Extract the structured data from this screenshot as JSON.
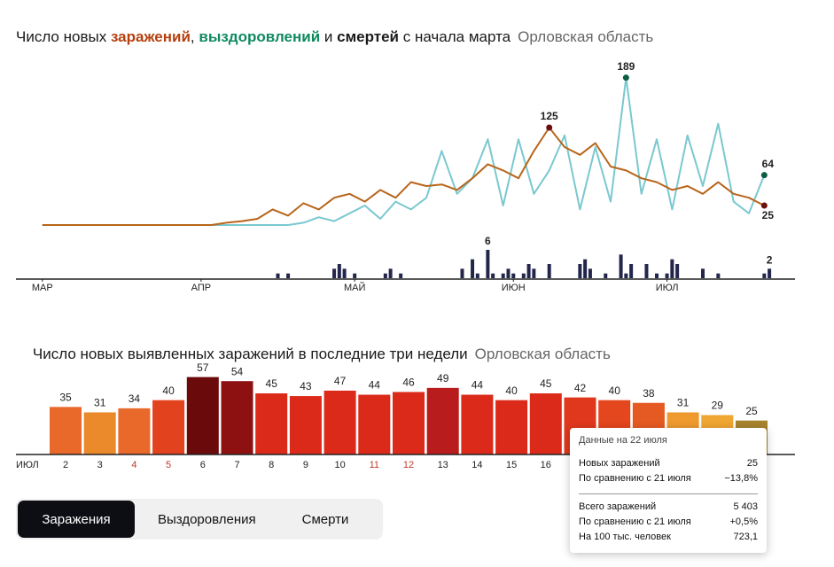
{
  "chart_data": [
    {
      "type": "line",
      "title": [
        {
          "text": "Число новых ",
          "color": "#1a1a1a"
        },
        {
          "text": "заражений",
          "color": "#b5400f"
        },
        {
          "text": ", ",
          "color": "#1a1a1a"
        },
        {
          "text": "выздоровлений",
          "color": "#0f8a5f"
        },
        {
          "text": " и ",
          "color": "#1a1a1a"
        },
        {
          "text": "смертей",
          "color": "#1a1a1a"
        },
        {
          "text": " с начала марта",
          "color": "#1a1a1a"
        }
      ],
      "subtitle": "Орловская область",
      "x": [
        0,
        3,
        6,
        9,
        12,
        15,
        18,
        21,
        24,
        27,
        30,
        33,
        36,
        39,
        42,
        45,
        48,
        51,
        54,
        57,
        60,
        63,
        66,
        69,
        72,
        75,
        78,
        81,
        84,
        87,
        90,
        93,
        96,
        99,
        102,
        105,
        108,
        111,
        114,
        117,
        120,
        123,
        126,
        129,
        132,
        135,
        138,
        141
      ],
      "xlim": [
        -1,
        147
      ],
      "xticks": [
        {
          "value": 0,
          "label": "МАР"
        },
        {
          "value": 31,
          "label": "АПР"
        },
        {
          "value": 61,
          "label": "МАЙ"
        },
        {
          "value": 92,
          "label": "ИЮН"
        },
        {
          "value": 122,
          "label": "ИЮЛ"
        }
      ],
      "ylim": [
        0,
        200
      ],
      "series": [
        {
          "color": "#7ac8d0",
          "marker_color": "#0b5e43",
          "values": [
            0,
            0,
            0,
            0,
            0,
            0,
            0,
            0,
            0,
            0,
            0,
            0,
            0,
            0,
            0,
            0,
            0,
            3,
            10,
            5,
            15,
            25,
            8,
            30,
            20,
            35,
            95,
            40,
            60,
            110,
            25,
            110,
            40,
            70,
            115,
            20,
            100,
            30,
            189,
            40,
            110,
            20,
            115,
            50,
            130,
            30,
            15,
            64
          ]
        },
        {
          "color": "#b8651a",
          "marker_color": "#6b1010",
          "values": [
            0,
            0,
            0,
            0,
            0,
            0,
            0,
            0,
            0,
            0,
            0,
            0,
            3,
            5,
            8,
            20,
            12,
            28,
            20,
            35,
            40,
            30,
            45,
            35,
            55,
            50,
            52,
            45,
            60,
            78,
            70,
            60,
            95,
            125,
            100,
            90,
            105,
            75,
            70,
            60,
            55,
            45,
            50,
            40,
            55,
            40,
            35,
            25
          ]
        }
      ]
    },
    {
      "type": "bar",
      "color": "#23264a",
      "x": [
        46,
        48,
        57,
        58,
        59,
        61,
        67,
        68,
        70,
        82,
        84,
        85,
        87,
        88,
        90,
        91,
        92,
        94,
        95,
        96,
        99,
        105,
        106,
        107,
        110,
        113,
        114,
        115,
        118,
        120,
        122,
        123,
        124,
        129,
        132,
        141,
        142
      ],
      "values": [
        1,
        1,
        2,
        3,
        2,
        1,
        1,
        2,
        1,
        2,
        4,
        1,
        6,
        1,
        1,
        2,
        1,
        1,
        3,
        2,
        3,
        3,
        4,
        2,
        1,
        5,
        1,
        3,
        3,
        1,
        1,
        4,
        3,
        2,
        1,
        1,
        2
      ],
      "xlim": [
        -1,
        147
      ],
      "ylim": [
        0,
        6
      ]
    },
    {
      "type": "bar",
      "title": "Число новых выявленных заражений в последние три недели",
      "subtitle": "Орловская область",
      "month_label": "ИЮЛ",
      "categories": [
        "2",
        "3",
        "4",
        "5",
        "6",
        "7",
        "8",
        "9",
        "10",
        "11",
        "12",
        "13",
        "14",
        "15",
        "16",
        null,
        null,
        null,
        null,
        null,
        null
      ],
      "category_colors": [
        "#222",
        "#222",
        "#c0392b",
        "#c0392b",
        "#222",
        "#222",
        "#222",
        "#222",
        "#222",
        "#c0392b",
        "#c0392b",
        "#222",
        "#222",
        "#222",
        "#222",
        "#222",
        "#222",
        "#222",
        "#222",
        "#222",
        "#222"
      ],
      "values": [
        35,
        31,
        34,
        40,
        57,
        54,
        45,
        43,
        47,
        44,
        46,
        49,
        44,
        40,
        45,
        42,
        40,
        38,
        31,
        29,
        25
      ],
      "colors": [
        "#e8692a",
        "#ea8a2a",
        "#e8692a",
        "#e2421e",
        "#6b0a0a",
        "#8e1111",
        "#dc2a1a",
        "#dc2a1a",
        "#dc2a1a",
        "#dc2a1a",
        "#dc2a1a",
        "#b81c1c",
        "#dc2a1a",
        "#dc2a1a",
        "#dc2a1a",
        "#e0381c",
        "#e4461e",
        "#e55a22",
        "#ee9a2e",
        "#f0a632",
        "#a8842e"
      ],
      "ylim": [
        0,
        60
      ]
    }
  ],
  "tooltip": {
    "date": "Данные на 22 июля",
    "rows": [
      [
        "Новых заражений",
        "25"
      ],
      [
        "По сравнению с 21 июля",
        "−13,8%"
      ],
      [
        "Всего заражений",
        "5 403"
      ],
      [
        "По сравнению с 21 июля",
        "+0,5%"
      ],
      [
        "На 100 тыс. человек",
        "723,1"
      ]
    ]
  },
  "tabs": [
    "Заражения",
    "Выздоровления",
    "Смерти"
  ]
}
